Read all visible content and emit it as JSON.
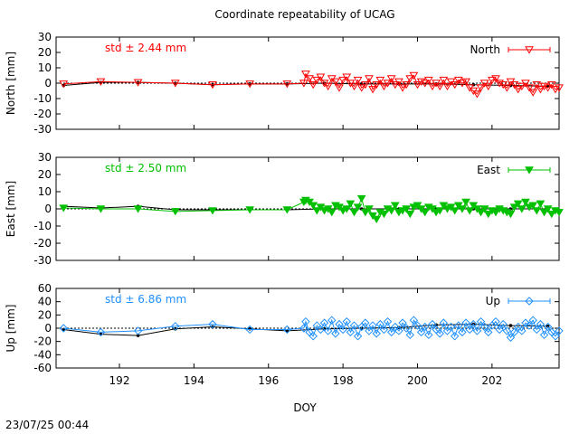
{
  "chart_data": {
    "type": "line",
    "title": "Coordinate repeatability of UCAG",
    "xlabel": "DOY",
    "xlim": [
      190.3,
      203.8
    ],
    "xticks": [
      192,
      194,
      196,
      198,
      200,
      202
    ],
    "timestamp": "23/07/25 00:44",
    "panels": [
      {
        "name": "north",
        "ylabel": "North [mm]",
        "ylim": [
          -30,
          30
        ],
        "yticks": [
          -30,
          -20,
          -10,
          0,
          10,
          20,
          30
        ],
        "std_label": "std ± 2.44 mm",
        "legend": "North",
        "color": "#ff0000",
        "marker": "triangle-down-open",
        "reference_line": [
          [
            190.5,
            -1.5
          ],
          [
            191.5,
            0.5
          ],
          [
            192.5,
            0.5
          ],
          [
            193.5,
            0
          ],
          [
            194.5,
            -1
          ],
          [
            195.5,
            -0.5
          ],
          [
            196.5,
            -0.5
          ],
          [
            197.5,
            0
          ],
          [
            198.5,
            -0.5
          ],
          [
            199.5,
            -0.5
          ],
          [
            200.5,
            -0.5
          ],
          [
            201.5,
            -1
          ],
          [
            202.5,
            -1.5
          ],
          [
            203.5,
            -2
          ]
        ],
        "sparse": [
          [
            190.5,
            -0.5
          ],
          [
            191.5,
            1
          ],
          [
            192.5,
            0.5
          ],
          [
            193.5,
            0
          ],
          [
            194.5,
            -1
          ],
          [
            195.5,
            -0.5
          ],
          [
            196.5,
            -0.5
          ]
        ],
        "dense": [
          [
            196.95,
            0
          ],
          [
            197.0,
            6
          ],
          [
            197.1,
            3
          ],
          [
            197.2,
            -1
          ],
          [
            197.3,
            2
          ],
          [
            197.4,
            4
          ],
          [
            197.5,
            0
          ],
          [
            197.6,
            -2
          ],
          [
            197.7,
            3
          ],
          [
            197.8,
            1
          ],
          [
            197.9,
            -3
          ],
          [
            198.0,
            2
          ],
          [
            198.1,
            4
          ],
          [
            198.2,
            0
          ],
          [
            198.3,
            -2
          ],
          [
            198.4,
            2
          ],
          [
            198.5,
            -3
          ],
          [
            198.6,
            -1
          ],
          [
            198.7,
            3
          ],
          [
            198.8,
            -4
          ],
          [
            198.9,
            -1
          ],
          [
            199.0,
            2
          ],
          [
            199.1,
            -2
          ],
          [
            199.2,
            0
          ],
          [
            199.3,
            3
          ],
          [
            199.4,
            -1
          ],
          [
            199.5,
            1
          ],
          [
            199.6,
            -3
          ],
          [
            199.7,
            -1
          ],
          [
            199.8,
            3
          ],
          [
            199.9,
            5
          ],
          [
            200.0,
            -1
          ],
          [
            200.1,
            1
          ],
          [
            200.2,
            0
          ],
          [
            200.3,
            2
          ],
          [
            200.4,
            -2
          ],
          [
            200.5,
            0
          ],
          [
            200.6,
            -2
          ],
          [
            200.7,
            2
          ],
          [
            200.8,
            -2
          ],
          [
            200.9,
            1
          ],
          [
            201.0,
            -1
          ],
          [
            201.1,
            2
          ],
          [
            201.2,
            0
          ],
          [
            201.3,
            1
          ],
          [
            201.4,
            -3
          ],
          [
            201.5,
            -5
          ],
          [
            201.6,
            -7
          ],
          [
            201.7,
            -3
          ],
          [
            201.8,
            0
          ],
          [
            201.9,
            -2
          ],
          [
            202.0,
            2
          ],
          [
            202.1,
            3
          ],
          [
            202.2,
            0
          ],
          [
            202.3,
            -1
          ],
          [
            202.4,
            -3
          ],
          [
            202.5,
            1
          ],
          [
            202.6,
            -1
          ],
          [
            202.7,
            -4
          ],
          [
            202.8,
            -2
          ],
          [
            202.9,
            0
          ],
          [
            203.0,
            -3
          ],
          [
            203.1,
            -6
          ],
          [
            203.2,
            -1
          ],
          [
            203.3,
            -4
          ],
          [
            203.4,
            -2
          ],
          [
            203.5,
            -3
          ],
          [
            203.6,
            -1
          ],
          [
            203.7,
            -4
          ],
          [
            203.8,
            -3
          ]
        ]
      },
      {
        "name": "east",
        "ylabel": "East [mm]",
        "ylim": [
          -30,
          30
        ],
        "yticks": [
          -30,
          -20,
          -10,
          0,
          10,
          20,
          30
        ],
        "std_label": "std ± 2.50 mm",
        "legend": "East",
        "color": "#00c000",
        "marker": "triangle-down-filled",
        "reference_line": [
          [
            190.5,
            1.5
          ],
          [
            191.5,
            0.5
          ],
          [
            192.5,
            1.5
          ],
          [
            193.5,
            -0.5
          ],
          [
            194.5,
            -0.5
          ],
          [
            195.5,
            -0.5
          ],
          [
            196.5,
            -0.5
          ],
          [
            197.5,
            0
          ],
          [
            198.5,
            0
          ],
          [
            199.5,
            0
          ],
          [
            200.5,
            0
          ],
          [
            201.5,
            0
          ],
          [
            202.5,
            0
          ],
          [
            203.5,
            0
          ]
        ],
        "sparse": [
          [
            190.5,
            0.5
          ],
          [
            191.5,
            0
          ],
          [
            192.5,
            0
          ],
          [
            193.5,
            -1.5
          ],
          [
            194.5,
            -1
          ],
          [
            195.5,
            -0.5
          ],
          [
            196.5,
            -0.5
          ]
        ],
        "dense": [
          [
            196.95,
            4
          ],
          [
            197.0,
            5
          ],
          [
            197.1,
            4
          ],
          [
            197.2,
            2
          ],
          [
            197.3,
            -1
          ],
          [
            197.4,
            1
          ],
          [
            197.5,
            -1
          ],
          [
            197.6,
            0
          ],
          [
            197.7,
            -2
          ],
          [
            197.8,
            2
          ],
          [
            197.9,
            1
          ],
          [
            198.0,
            -1
          ],
          [
            198.1,
            0
          ],
          [
            198.2,
            3
          ],
          [
            198.3,
            -2
          ],
          [
            198.4,
            1
          ],
          [
            198.5,
            6
          ],
          [
            198.6,
            -2
          ],
          [
            198.7,
            0
          ],
          [
            198.8,
            -4
          ],
          [
            198.9,
            -6
          ],
          [
            199.0,
            -2
          ],
          [
            199.1,
            -3
          ],
          [
            199.2,
            0
          ],
          [
            199.3,
            -1
          ],
          [
            199.4,
            2
          ],
          [
            199.5,
            -2
          ],
          [
            199.6,
            -1
          ],
          [
            199.7,
            0
          ],
          [
            199.8,
            -3
          ],
          [
            199.9,
            1
          ],
          [
            200.0,
            2
          ],
          [
            200.1,
            0
          ],
          [
            200.2,
            -2
          ],
          [
            200.3,
            1
          ],
          [
            200.4,
            0
          ],
          [
            200.5,
            -2
          ],
          [
            200.6,
            -1
          ],
          [
            200.7,
            2
          ],
          [
            200.8,
            0
          ],
          [
            200.9,
            1
          ],
          [
            201.0,
            -1
          ],
          [
            201.1,
            2
          ],
          [
            201.2,
            0
          ],
          [
            201.3,
            4
          ],
          [
            201.4,
            -1
          ],
          [
            201.5,
            2
          ],
          [
            201.6,
            0
          ],
          [
            201.7,
            -2
          ],
          [
            201.8,
            0
          ],
          [
            201.9,
            -3
          ],
          [
            202.0,
            -1
          ],
          [
            202.1,
            -2
          ],
          [
            202.2,
            0
          ],
          [
            202.3,
            -1
          ],
          [
            202.4,
            -2
          ],
          [
            202.5,
            -3
          ],
          [
            202.6,
            1
          ],
          [
            202.7,
            3
          ],
          [
            202.8,
            0
          ],
          [
            202.9,
            4
          ],
          [
            203.0,
            1
          ],
          [
            203.1,
            2
          ],
          [
            203.2,
            -1
          ],
          [
            203.3,
            3
          ],
          [
            203.4,
            -2
          ],
          [
            203.5,
            0
          ],
          [
            203.6,
            -3
          ],
          [
            203.7,
            -1
          ],
          [
            203.8,
            -2
          ]
        ]
      },
      {
        "name": "up",
        "ylabel": "Up [mm]",
        "ylim": [
          -60,
          60
        ],
        "yticks": [
          -60,
          -40,
          -20,
          0,
          20,
          40,
          60
        ],
        "std_label": "std ± 6.86 mm",
        "legend": "Up",
        "color": "#1e90ff",
        "marker": "diamond-open",
        "reference_line": [
          [
            190.5,
            -2
          ],
          [
            191.5,
            -9
          ],
          [
            192.5,
            -11
          ],
          [
            193.5,
            -1
          ],
          [
            194.5,
            2
          ],
          [
            195.5,
            -1
          ],
          [
            196.5,
            -4
          ],
          [
            197.5,
            -1
          ],
          [
            198.5,
            0
          ],
          [
            199.5,
            1
          ],
          [
            200.5,
            5
          ],
          [
            201.5,
            6
          ],
          [
            202.5,
            4
          ],
          [
            203.5,
            3
          ]
        ],
        "sparse": [
          [
            190.5,
            0
          ],
          [
            191.5,
            -6
          ],
          [
            192.5,
            -4
          ],
          [
            193.5,
            3
          ],
          [
            194.5,
            6
          ],
          [
            195.5,
            -2
          ],
          [
            196.5,
            -2
          ]
        ],
        "dense": [
          [
            196.95,
            0
          ],
          [
            197.0,
            10
          ],
          [
            197.1,
            -6
          ],
          [
            197.2,
            -12
          ],
          [
            197.3,
            4
          ],
          [
            197.4,
            -2
          ],
          [
            197.5,
            8
          ],
          [
            197.6,
            -4
          ],
          [
            197.7,
            12
          ],
          [
            197.8,
            -8
          ],
          [
            197.9,
            6
          ],
          [
            198.0,
            -2
          ],
          [
            198.1,
            10
          ],
          [
            198.2,
            -6
          ],
          [
            198.3,
            4
          ],
          [
            198.4,
            -12
          ],
          [
            198.5,
            2
          ],
          [
            198.6,
            8
          ],
          [
            198.7,
            -4
          ],
          [
            198.8,
            4
          ],
          [
            198.9,
            -8
          ],
          [
            199.0,
            6
          ],
          [
            199.1,
            -2
          ],
          [
            199.2,
            10
          ],
          [
            199.3,
            -6
          ],
          [
            199.4,
            2
          ],
          [
            199.5,
            -4
          ],
          [
            199.6,
            8
          ],
          [
            199.7,
            0
          ],
          [
            199.8,
            -10
          ],
          [
            199.9,
            12
          ],
          [
            200.0,
            4
          ],
          [
            200.1,
            -6
          ],
          [
            200.2,
            2
          ],
          [
            200.3,
            -10
          ],
          [
            200.4,
            6
          ],
          [
            200.5,
            -2
          ],
          [
            200.6,
            -8
          ],
          [
            200.7,
            8
          ],
          [
            200.8,
            -4
          ],
          [
            200.9,
            2
          ],
          [
            201.0,
            -12
          ],
          [
            201.1,
            4
          ],
          [
            201.2,
            -6
          ],
          [
            201.3,
            8
          ],
          [
            201.4,
            -2
          ],
          [
            201.5,
            6
          ],
          [
            201.6,
            -4
          ],
          [
            201.7,
            10
          ],
          [
            201.8,
            2
          ],
          [
            201.9,
            -6
          ],
          [
            202.0,
            4
          ],
          [
            202.1,
            10
          ],
          [
            202.2,
            -2
          ],
          [
            202.3,
            6
          ],
          [
            202.4,
            -4
          ],
          [
            202.5,
            -14
          ],
          [
            202.6,
            -6
          ],
          [
            202.7,
            2
          ],
          [
            202.8,
            -4
          ],
          [
            202.9,
            8
          ],
          [
            203.0,
            4
          ],
          [
            203.1,
            12
          ],
          [
            203.2,
            -2
          ],
          [
            203.3,
            6
          ],
          [
            203.4,
            -10
          ],
          [
            203.5,
            2
          ],
          [
            203.6,
            -6
          ],
          [
            203.7,
            -12
          ],
          [
            203.8,
            -4
          ]
        ]
      }
    ]
  }
}
